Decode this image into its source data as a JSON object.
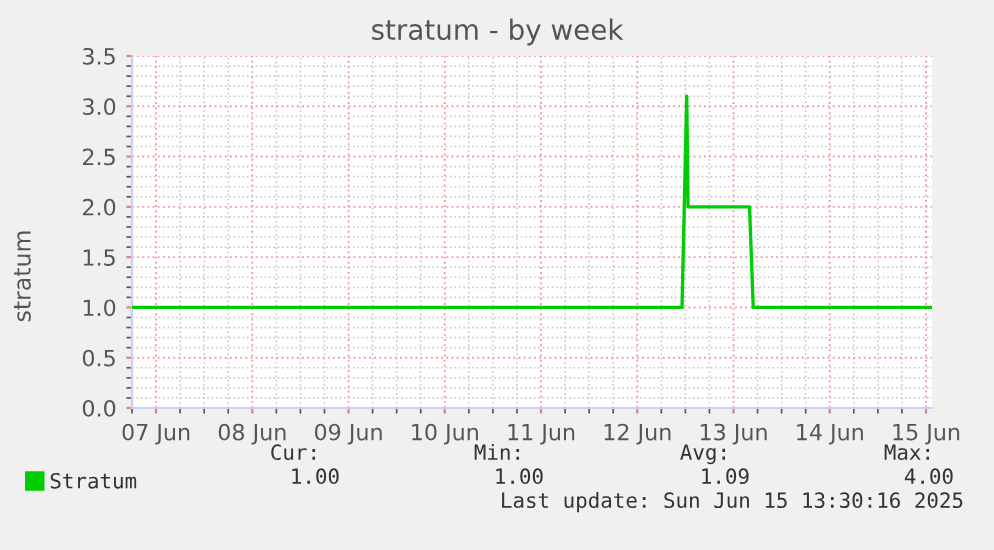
{
  "chart_data": {
    "type": "line",
    "title": "stratum - by week",
    "ylabel": "stratum",
    "series": [
      {
        "name": "Stratum",
        "color": "#00cc00",
        "x": [
          "2025-06-07T06:00",
          "2025-06-12T23:10",
          "2025-06-13T00:20",
          "2025-06-13T00:40",
          "2025-06-13T16:00",
          "2025-06-13T16:55",
          "2025-06-15T13:30"
        ],
        "values": [
          1,
          1,
          3.1,
          2,
          2,
          1,
          1
        ]
      }
    ],
    "xlim": [
      "2025-06-07T06:00",
      "2025-06-15T13:30"
    ],
    "xticks": [
      {
        "value": "2025-06-07T12:00",
        "label": "07 Jun"
      },
      {
        "value": "2025-06-08T12:00",
        "label": "08 Jun"
      },
      {
        "value": "2025-06-09T12:00",
        "label": "09 Jun"
      },
      {
        "value": "2025-06-10T12:00",
        "label": "10 Jun"
      },
      {
        "value": "2025-06-11T12:00",
        "label": "11 Jun"
      },
      {
        "value": "2025-06-12T12:00",
        "label": "12 Jun"
      },
      {
        "value": "2025-06-13T12:00",
        "label": "13 Jun"
      },
      {
        "value": "2025-06-14T12:00",
        "label": "14 Jun"
      },
      {
        "value": "2025-06-15T12:00",
        "label": "15 Jun"
      }
    ],
    "ylim": [
      0,
      3.5
    ],
    "yticks": [
      {
        "value": 0,
        "label": "0.0"
      },
      {
        "value": 0.5,
        "label": "0.5"
      },
      {
        "value": 1,
        "label": "1.0"
      },
      {
        "value": 1.5,
        "label": "1.5"
      },
      {
        "value": 2,
        "label": "2.0"
      },
      {
        "value": 2.5,
        "label": "2.5"
      },
      {
        "value": 3,
        "label": "3.0"
      },
      {
        "value": 3.5,
        "label": "3.5"
      }
    ],
    "grid": true,
    "legend": "bottom",
    "marker": "none",
    "line_style": "solid",
    "annotations": [
      "Cur:",
      "Min:",
      "Avg:",
      "Max:",
      "1.00",
      "1.00",
      "1.09",
      "4.00",
      "Last update: Sun Jun 15 13:30:16 2025"
    ]
  }
}
